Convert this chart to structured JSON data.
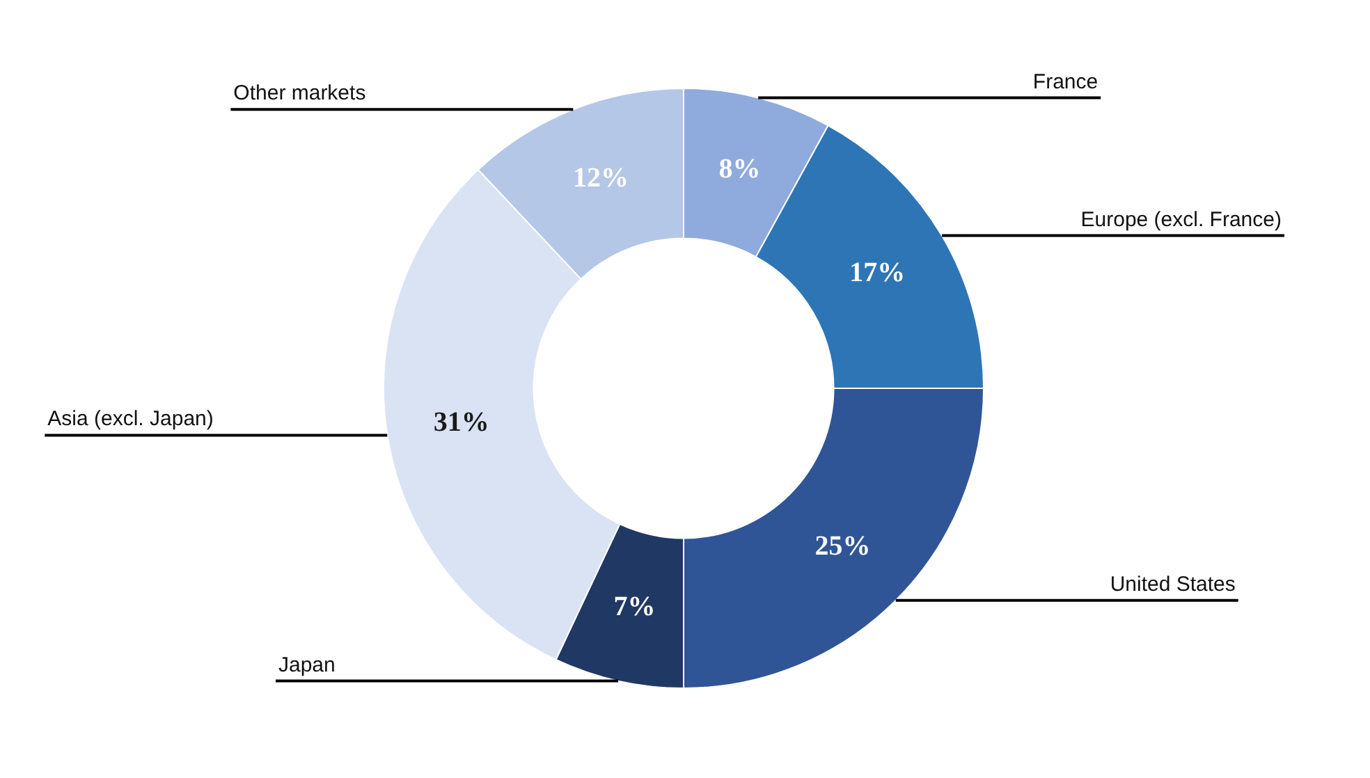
{
  "chart_data": {
    "type": "donut",
    "categories": [
      "France",
      "Europe (excl. France)",
      "United States",
      "Japan",
      "Asia (excl. Japan)",
      "Other markets"
    ],
    "values": [
      8,
      17,
      25,
      7,
      31,
      12
    ],
    "value_labels": [
      "8%",
      "17%",
      "25%",
      "7%",
      "31%",
      "12%"
    ],
    "colors": [
      "#8faadc",
      "#2e75b6",
      "#2f5597",
      "#203864",
      "#dae3f3",
      "#b4c7e7"
    ],
    "legend": false
  }
}
